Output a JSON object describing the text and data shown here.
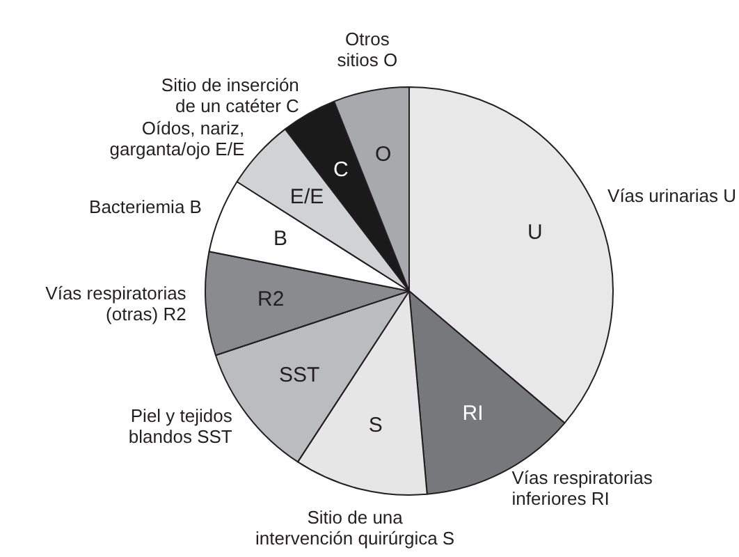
{
  "chart_data": {
    "type": "pie",
    "categories": [
      "Vías urinarias U",
      "Vías respiratorias\ninferiores RI",
      "Sitio de una\nintervención quirúrgica S",
      "Piel y tejidos\nblandos SST",
      "Vías respiratorias\n(otras) R2",
      "Bacteriemia B",
      "Oídos, nariz,\ngarganta/ojo E/E",
      "Sitio de inserción\nde un catéter C",
      "Otros\nsitios O"
    ],
    "values": [
      36.2,
      12.4,
      10.6,
      10.7,
      8.2,
      5.9,
      5.6,
      4.4,
      6.0
    ],
    "colors": [
      "#e8e8e9",
      "#77787b",
      "#e6e6e7",
      "#bbbcbe",
      "#8a8b8e",
      "#ffffff",
      "#d1d2d4",
      "#1a1a1a",
      "#a7a9ac"
    ],
    "annotations": [
      "U",
      "RI",
      "S",
      "SST",
      "R2",
      "B",
      "E/E",
      "C",
      "O"
    ]
  }
}
